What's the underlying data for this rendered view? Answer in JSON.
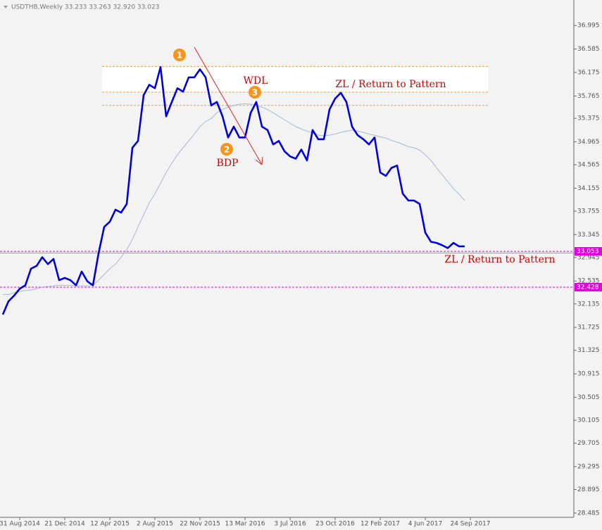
{
  "chart_data": {
    "type": "line",
    "header": "USDTHB,Weekly  33.233 33.263 32.920 33.023",
    "categories": [
      null,
      null,
      null,
      "31 Aug 2014",
      null,
      null,
      null,
      null,
      null,
      null,
      null,
      "21 Dec 2014",
      null,
      null,
      null,
      null,
      null,
      null,
      null,
      "12 Apr 2015",
      null,
      null,
      null,
      null,
      null,
      null,
      null,
      "2 Aug 2015",
      null,
      null,
      null,
      null,
      null,
      null,
      null,
      "22 Nov 2015",
      null,
      null,
      null,
      null,
      null,
      null,
      null,
      "13 Mar 2016",
      null,
      null,
      null,
      null,
      null,
      null,
      null,
      "3 Jul 2016",
      null,
      null,
      null,
      null,
      null,
      null,
      null,
      "23 Oct 2016",
      null,
      null,
      null,
      null,
      null,
      null,
      null,
      "12 Feb 2017",
      null,
      null,
      null,
      null,
      null,
      null,
      null,
      "4 Jun 2017",
      null,
      null,
      null,
      null,
      null,
      null,
      null,
      "24 Sep 2017"
    ],
    "series": [
      {
        "color": "#0000dd",
        "values": [
          31.95,
          32.18,
          32.28,
          32.4,
          32.46,
          32.75,
          32.8,
          32.95,
          32.83,
          32.92,
          32.55,
          32.59,
          32.55,
          32.46,
          32.7,
          32.53,
          32.46,
          33.02,
          33.48,
          33.57,
          33.78,
          33.73,
          33.88,
          34.86,
          34.98,
          35.78,
          35.96,
          35.9,
          36.27,
          35.41,
          35.66,
          35.9,
          35.84,
          36.09,
          36.09,
          36.23,
          36.09,
          35.6,
          35.66,
          35.41,
          35.04,
          35.23,
          35.04,
          35.04,
          35.47,
          35.66,
          35.23,
          35.17,
          34.92,
          34.98,
          34.8,
          34.71,
          34.67,
          34.83,
          34.64,
          35.17,
          35.01,
          35.01,
          35.53,
          35.72,
          35.82,
          35.66,
          35.23,
          35.08,
          35.01,
          34.92,
          35.04,
          34.43,
          34.37,
          34.51,
          34.55,
          34.06,
          33.94,
          33.94,
          33.88,
          33.38,
          33.22,
          33.2,
          33.16,
          33.11,
          33.2,
          33.14,
          33.14,
          null
        ]
      },
      {
        "color": "#a9b8d6",
        "values": [
          32.3,
          32.3,
          32.33,
          32.35,
          32.37,
          32.38,
          32.4,
          32.43,
          32.44,
          32.45,
          32.46,
          32.46,
          32.46,
          32.45,
          32.45,
          32.45,
          32.46,
          32.55,
          32.65,
          32.75,
          32.83,
          32.95,
          33.08,
          33.26,
          33.48,
          33.69,
          33.9,
          34.06,
          34.24,
          34.43,
          34.59,
          34.74,
          34.86,
          34.98,
          35.1,
          35.23,
          35.32,
          35.37,
          35.47,
          35.53,
          35.57,
          35.6,
          35.62,
          35.63,
          35.62,
          35.6,
          35.57,
          35.53,
          35.47,
          35.41,
          35.35,
          35.29,
          35.23,
          35.19,
          35.15,
          35.12,
          35.08,
          35.07,
          35.08,
          35.1,
          35.13,
          35.15,
          35.17,
          35.15,
          35.13,
          35.1,
          35.08,
          35.05,
          35.03,
          34.99,
          34.96,
          34.92,
          34.88,
          34.86,
          34.82,
          34.74,
          34.64,
          34.51,
          34.39,
          34.27,
          34.15,
          34.05,
          33.94,
          null
        ]
      }
    ],
    "ylim": [
      28.41,
      37.44
    ],
    "yticks": [
      36.995,
      36.585,
      36.175,
      35.765,
      35.375,
      34.965,
      34.565,
      34.155,
      33.755,
      33.345,
      32.945,
      32.535,
      32.135,
      31.725,
      31.325,
      30.915,
      30.505,
      30.105,
      29.705,
      29.295,
      28.895,
      28.485
    ],
    "hlines": [
      {
        "value": 33.053,
        "color": "#e000e0"
      },
      {
        "value": 32.428,
        "color": "#e000e0"
      }
    ],
    "price_line": 33.023,
    "zone_levels": [
      36.28,
      35.83,
      35.6
    ],
    "markers": [
      1,
      2,
      3
    ],
    "annotations": [
      "WDL",
      "BDP",
      "ZL / Return to Pattern",
      "ZL / Return to Pattern"
    ]
  }
}
